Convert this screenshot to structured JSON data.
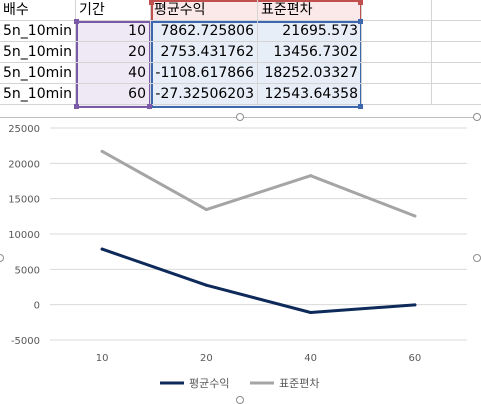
{
  "sheet": {
    "headers": [
      "배수",
      "기간",
      "평균수익",
      "표준편차"
    ],
    "rows": [
      [
        "5n_10min",
        "10",
        "7862.725806",
        "21695.573"
      ],
      [
        "5n_10min",
        "20",
        "2753.431762",
        "13456.7302"
      ],
      [
        "5n_10min",
        "40",
        "-1108.617866",
        "18252.03327"
      ],
      [
        "5n_10min",
        "60",
        "-27.32506203",
        "12543.64358"
      ]
    ]
  },
  "colors": {
    "series1": "#0e2a5a",
    "series2": "#a5a5a5",
    "gridline": "#d9d9d9",
    "axis_text": "#595959",
    "range_purple": "#7a5aa6",
    "range_red": "#c0504d",
    "range_blue": "#3d68ad"
  },
  "chart_data": {
    "type": "line",
    "title": "",
    "categories": [
      "10",
      "20",
      "40",
      "60"
    ],
    "series": [
      {
        "name": "평균수익",
        "values": [
          7862.725806,
          2753.431762,
          -1108.617866,
          -27.32506203
        ]
      },
      {
        "name": "표준편차",
        "values": [
          21695.573,
          13456.7302,
          18252.03327,
          12543.64358
        ]
      }
    ],
    "ylim": [
      -5000,
      25000
    ],
    "y_ticks": [
      "25000",
      "20000",
      "15000",
      "10000",
      "5000",
      "0",
      "-5000"
    ],
    "grid": true,
    "legend": "bottom"
  }
}
